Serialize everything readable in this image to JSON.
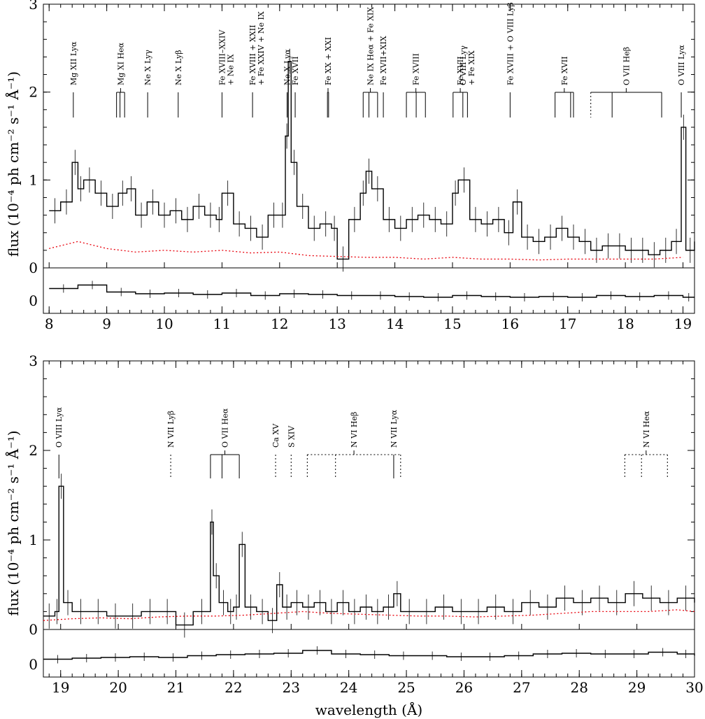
{
  "chart_data": [
    {
      "type": "line",
      "panel": "top",
      "ylabel": "flux (10⁻⁴ ph cm⁻² s⁻¹ Å⁻¹)",
      "xlim": [
        7.9,
        19.2
      ],
      "ylim": [
        0,
        3
      ],
      "x_ticks": [
        8,
        9,
        10,
        11,
        12,
        13,
        14,
        15,
        16,
        17,
        18,
        19
      ],
      "y_ticks": [
        0,
        1,
        2,
        3
      ],
      "resid_ticks": [
        0
      ],
      "colors": {
        "data": "#000000",
        "model": "#e8000b",
        "resid": "#000000"
      },
      "series": [
        {
          "name": "data",
          "style": "histogram",
          "x": [
            8.0,
            8.2,
            8.4,
            8.5,
            8.6,
            8.8,
            9.0,
            9.2,
            9.35,
            9.5,
            9.7,
            9.9,
            10.1,
            10.3,
            10.5,
            10.7,
            10.9,
            11.0,
            11.2,
            11.4,
            11.6,
            11.8,
            12.0,
            12.1,
            12.15,
            12.2,
            12.3,
            12.5,
            12.7,
            12.9,
            13.0,
            13.2,
            13.4,
            13.5,
            13.6,
            13.8,
            14.0,
            14.2,
            14.4,
            14.6,
            14.8,
            15.0,
            15.1,
            15.3,
            15.5,
            15.7,
            15.9,
            16.05,
            16.2,
            16.4,
            16.6,
            16.8,
            17.0,
            17.2,
            17.4,
            17.6,
            17.8,
            18.0,
            18.2,
            18.4,
            18.6,
            18.8,
            18.97,
            19.05,
            19.2
          ],
          "values": [
            0.65,
            0.75,
            1.2,
            0.9,
            1.0,
            0.85,
            0.7,
            0.85,
            0.9,
            0.6,
            0.75,
            0.6,
            0.65,
            0.55,
            0.7,
            0.6,
            0.55,
            0.85,
            0.5,
            0.45,
            0.35,
            0.6,
            0.6,
            1.5,
            2.35,
            1.2,
            0.7,
            0.45,
            0.5,
            0.45,
            0.1,
            0.55,
            0.85,
            1.1,
            0.9,
            0.55,
            0.45,
            0.55,
            0.6,
            0.55,
            0.5,
            0.85,
            1.0,
            0.55,
            0.5,
            0.55,
            0.4,
            0.75,
            0.35,
            0.3,
            0.35,
            0.45,
            0.35,
            0.3,
            0.2,
            0.25,
            0.25,
            0.2,
            0.2,
            0.15,
            0.2,
            0.3,
            1.6,
            0.2,
            0.3
          ]
        },
        {
          "name": "model",
          "style": "dotted",
          "x": [
            8.0,
            8.5,
            9.0,
            9.5,
            10.0,
            10.5,
            11.0,
            11.5,
            12.0,
            12.5,
            13.0,
            13.5,
            14.0,
            14.5,
            15.0,
            15.5,
            16.0,
            16.5,
            17.0,
            17.5,
            18.0,
            18.5,
            19.0
          ],
          "values": [
            0.22,
            0.3,
            0.22,
            0.18,
            0.2,
            0.18,
            0.2,
            0.17,
            0.18,
            0.14,
            0.13,
            0.12,
            0.12,
            0.1,
            0.12,
            0.1,
            0.1,
            0.09,
            0.1,
            0.1,
            0.1,
            0.1,
            0.12
          ]
        },
        {
          "name": "residual",
          "style": "histogram",
          "x": [
            8.0,
            8.5,
            9.0,
            9.5,
            10.0,
            10.5,
            11.0,
            11.5,
            12.0,
            12.5,
            13.0,
            13.5,
            14.0,
            14.5,
            15.0,
            15.5,
            16.0,
            16.5,
            17.0,
            17.5,
            18.0,
            18.5,
            19.0
          ],
          "values": [
            0.25,
            0.35,
            0.15,
            0.1,
            0.12,
            0.08,
            0.12,
            0.05,
            0.1,
            0.08,
            0.05,
            0.05,
            0.02,
            0.0,
            0.05,
            0.02,
            0.0,
            0.02,
            0.0,
            0.05,
            0.02,
            0.05,
            0.0
          ]
        }
      ],
      "line_ids": [
        {
          "label": "Mg XII Lyα",
          "style": "solid",
          "x": [
            8.42
          ]
        },
        {
          "label": "Mg XI Heα",
          "style": "solid",
          "x": [
            9.17,
            9.23,
            9.31
          ]
        },
        {
          "label": "Ne X Lyγ",
          "style": "solid",
          "x": [
            9.71
          ]
        },
        {
          "label": "Ne X Lyβ",
          "style": "solid",
          "x": [
            10.24
          ]
        },
        {
          "label": "Fe XVIII–XXIV\n+ Ne IX",
          "style": "solid",
          "x": [
            11.0
          ]
        },
        {
          "label": "Fe XVIII + XXII\n+ Fe XXIV + Ne IX",
          "style": "solid",
          "x": [
            11.53
          ]
        },
        {
          "label": "Ne X Lyα",
          "style": "solid",
          "x": [
            12.13
          ]
        },
        {
          "label": "Fe XVII",
          "style": "solid",
          "x": [
            12.27
          ]
        },
        {
          "label": "Fe XX + XXI",
          "style": "solid",
          "x": [
            12.83,
            12.85
          ]
        },
        {
          "label": "Ne IX Heα + Fe XIX",
          "style": "solid",
          "x": [
            13.45,
            13.55,
            13.7
          ]
        },
        {
          "label": "Fe XVII+XIX",
          "style": "solid",
          "x": [
            13.8
          ]
        },
        {
          "label": "Fe XVIII",
          "style": "solid",
          "x": [
            14.2,
            14.37,
            14.53
          ]
        },
        {
          "label": "Fe XVII",
          "style": "solid",
          "x": [
            15.01,
            15.26
          ]
        },
        {
          "label": "O VIII Lyγ\n+ Fe XIX",
          "style": "solid",
          "x": [
            15.18
          ]
        },
        {
          "label": "Fe XVIII + O VIII Lyβ",
          "style": "solid",
          "x": [
            16.0
          ]
        },
        {
          "label": "Fe XVII",
          "style": "solid",
          "x": [
            16.78,
            17.05,
            17.1
          ]
        },
        {
          "label": "O VII Heβ",
          "style": "mixed",
          "x": [
            17.4,
            17.77,
            18.63
          ]
        },
        {
          "label": "O VIII Lyα",
          "style": "solid",
          "x": [
            18.97
          ]
        }
      ]
    },
    {
      "type": "line",
      "panel": "bottom",
      "xlabel": "wavelength (Å)",
      "ylabel": "flux (10⁻⁴ ph cm⁻² s⁻¹ Å⁻¹)",
      "xlim": [
        18.7,
        30.0
      ],
      "ylim": [
        0,
        3
      ],
      "x_ticks": [
        19,
        20,
        21,
        22,
        23,
        24,
        25,
        26,
        27,
        28,
        29,
        30
      ],
      "y_ticks": [
        0,
        1,
        2,
        3
      ],
      "resid_ticks": [
        0
      ],
      "colors": {
        "data": "#000000",
        "model": "#e8000b",
        "resid": "#000000"
      },
      "series": [
        {
          "name": "data",
          "style": "histogram",
          "x": [
            18.7,
            18.9,
            18.97,
            19.05,
            19.2,
            19.5,
            19.8,
            20.1,
            20.4,
            20.7,
            21.0,
            21.3,
            21.6,
            21.65,
            21.75,
            21.9,
            22.0,
            22.1,
            22.2,
            22.4,
            22.6,
            22.75,
            22.85,
            23.0,
            23.2,
            23.4,
            23.6,
            23.8,
            24.0,
            24.2,
            24.4,
            24.6,
            24.78,
            24.9,
            25.2,
            25.5,
            25.8,
            26.1,
            26.4,
            26.7,
            27.0,
            27.3,
            27.6,
            27.9,
            28.2,
            28.5,
            28.8,
            29.1,
            29.4,
            29.7,
            30.0
          ],
          "values": [
            0.15,
            0.2,
            1.6,
            0.3,
            0.2,
            0.2,
            0.15,
            0.15,
            0.2,
            0.2,
            0.05,
            0.2,
            1.2,
            0.6,
            0.3,
            0.2,
            0.25,
            0.95,
            0.25,
            0.2,
            0.1,
            0.5,
            0.25,
            0.3,
            0.25,
            0.3,
            0.2,
            0.3,
            0.2,
            0.25,
            0.2,
            0.25,
            0.4,
            0.2,
            0.2,
            0.25,
            0.2,
            0.2,
            0.25,
            0.2,
            0.3,
            0.25,
            0.35,
            0.3,
            0.35,
            0.3,
            0.4,
            0.35,
            0.3,
            0.35,
            0.3
          ]
        },
        {
          "name": "model",
          "style": "dotted",
          "x": [
            18.7,
            19.2,
            19.7,
            20.2,
            20.7,
            21.2,
            21.7,
            22.2,
            22.7,
            23.2,
            23.7,
            24.2,
            24.7,
            25.2,
            25.7,
            26.2,
            26.7,
            27.2,
            27.7,
            28.2,
            28.7,
            29.2,
            29.7,
            30.0
          ],
          "values": [
            0.1,
            0.12,
            0.13,
            0.12,
            0.14,
            0.15,
            0.15,
            0.16,
            0.18,
            0.2,
            0.18,
            0.17,
            0.16,
            0.15,
            0.15,
            0.14,
            0.15,
            0.16,
            0.18,
            0.2,
            0.2,
            0.2,
            0.22,
            0.2
          ]
        },
        {
          "name": "residual",
          "style": "histogram",
          "x": [
            18.7,
            19.2,
            19.7,
            20.2,
            20.7,
            21.2,
            21.7,
            22.2,
            22.7,
            23.2,
            23.7,
            24.2,
            24.7,
            25.2,
            25.7,
            26.2,
            26.7,
            27.2,
            27.7,
            28.2,
            28.7,
            29.2,
            29.7,
            30.0
          ],
          "values": [
            0.05,
            0.08,
            0.1,
            0.12,
            0.1,
            0.15,
            0.18,
            0.2,
            0.22,
            0.3,
            0.2,
            0.18,
            0.15,
            0.15,
            0.12,
            0.12,
            0.15,
            0.2,
            0.22,
            0.2,
            0.2,
            0.25,
            0.2,
            0.15
          ]
        }
      ],
      "line_ids": [
        {
          "label": "O VIII Lyα",
          "style": "solid",
          "x": [
            18.97
          ]
        },
        {
          "label": "N VII Lyβ",
          "style": "dotted",
          "x": [
            20.91
          ]
        },
        {
          "label": "O VII Heα",
          "style": "solid",
          "x": [
            21.6,
            21.8,
            22.1
          ]
        },
        {
          "label": "Ca XV",
          "style": "dotted",
          "x": [
            22.73
          ]
        },
        {
          "label": "S XIV",
          "style": "dotted",
          "x": [
            23.0
          ]
        },
        {
          "label": "N VI Heβ",
          "style": "dotted",
          "x": [
            23.28,
            23.77,
            24.9
          ]
        },
        {
          "label": "N VII Lyα",
          "style": "solid",
          "x": [
            24.78
          ]
        },
        {
          "label": "N VI Heα",
          "style": "dotted",
          "x": [
            28.79,
            29.08,
            29.53
          ]
        }
      ]
    }
  ]
}
